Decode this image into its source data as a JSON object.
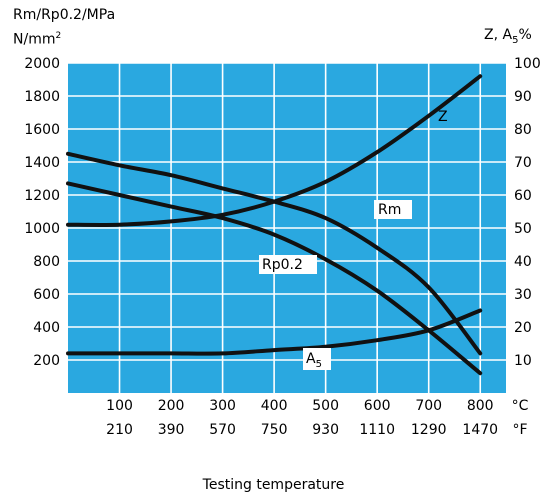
{
  "chart_data": {
    "type": "line",
    "title": "",
    "left_axis": {
      "label_line1": "Rm/Rp0.2/MPa",
      "label_line2": "N/mm",
      "label_sup": "2",
      "ticks": [
        200,
        400,
        600,
        800,
        1000,
        1200,
        1400,
        1600,
        1800,
        2000
      ],
      "range": [
        0,
        2000
      ]
    },
    "right_axis": {
      "label_main": "Z, A",
      "label_sub": "5",
      "label_tail": "%",
      "ticks": [
        10,
        20,
        30,
        40,
        50,
        60,
        70,
        80,
        90,
        100
      ],
      "range": [
        0,
        100
      ]
    },
    "x_axis": {
      "range": [
        0,
        850
      ],
      "celsius": [
        "100",
        "200",
        "300",
        "400",
        "500",
        "600",
        "700",
        "800"
      ],
      "celsius_unit": "°C",
      "fahrenheit": [
        "210",
        "390",
        "570",
        "750",
        "930",
        "1110",
        "1290",
        "1470"
      ],
      "fahrenheit_unit": "°F",
      "xlabel": "Testing temperature"
    },
    "grid": true,
    "series": [
      {
        "name": "Rm",
        "axis": "left",
        "x": [
          0,
          100,
          200,
          300,
          400,
          500,
          600,
          700,
          800
        ],
        "y": [
          1450,
          1380,
          1320,
          1240,
          1160,
          1060,
          880,
          640,
          240
        ]
      },
      {
        "name": "Rp0.2",
        "axis": "left",
        "x": [
          0,
          100,
          200,
          300,
          400,
          500,
          600,
          700,
          800
        ],
        "y": [
          1270,
          1200,
          1130,
          1060,
          960,
          810,
          620,
          380,
          120
        ]
      },
      {
        "name": "Z",
        "axis": "right",
        "x": [
          0,
          100,
          200,
          300,
          400,
          500,
          600,
          700,
          800
        ],
        "y": [
          51,
          51,
          52,
          54,
          58,
          64,
          73,
          84,
          96
        ]
      },
      {
        "name": "A",
        "name_sub": "5",
        "axis": "right",
        "x": [
          0,
          100,
          200,
          300,
          400,
          500,
          600,
          700,
          800
        ],
        "y": [
          12,
          12,
          12,
          12,
          13,
          14,
          16,
          19,
          25
        ]
      }
    ]
  }
}
